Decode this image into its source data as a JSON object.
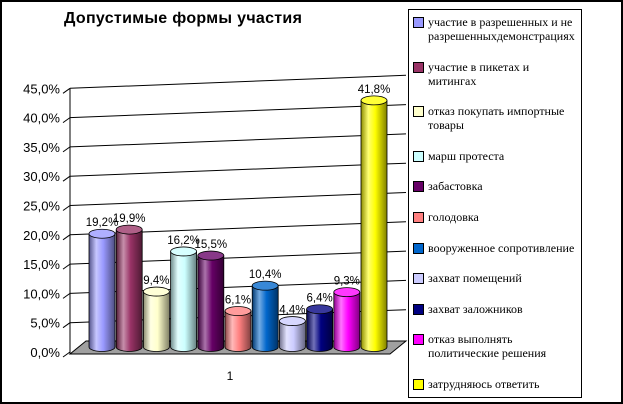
{
  "window": {
    "title": "Допустимые формы участия"
  },
  "chart_data": {
    "type": "bar",
    "style": "3d-cylinder",
    "title": "Допустимые формы участия",
    "categories": [
      "1"
    ],
    "series": [
      {
        "name": "участие в разрешенных и не разрешенныхдемонстрациях",
        "value": 19.2,
        "label": "19,2%",
        "color": "#9999FF"
      },
      {
        "name": "участие в пикетах и митингах",
        "value": 19.9,
        "label": "19,9%",
        "color": "#993366"
      },
      {
        "name": "отказ покупать импортные товары",
        "value": 9.4,
        "label": "9,4%",
        "color": "#FFFFCC"
      },
      {
        "name": "марш протеста",
        "value": 16.2,
        "label": "16,2%",
        "color": "#CCFFFF"
      },
      {
        "name": "забастовка",
        "value": 15.5,
        "label": "15,5%",
        "color": "#660066"
      },
      {
        "name": "голодовка",
        "value": 6.1,
        "label": "6,1%",
        "color": "#FF8080"
      },
      {
        "name": "вооруженное сопротивление",
        "value": 10.4,
        "label": "10,4%",
        "color": "#0066CC"
      },
      {
        "name": "захват помещений",
        "value": 4.4,
        "label": "4,4%",
        "color": "#CCCCFF"
      },
      {
        "name": "захват заложников",
        "value": 6.4,
        "label": "6,4%",
        "color": "#000080"
      },
      {
        "name": "отказ выполнять политические решения",
        "value": 9.3,
        "label": "9,3%",
        "color": "#FF00FF"
      },
      {
        "name": "затрудняюсь ответить",
        "value": 41.8,
        "label": "41,8%",
        "color": "#FFFF00"
      }
    ],
    "y_axis": {
      "min": 0,
      "max": 45,
      "step": 5,
      "tick_labels": [
        "0,0%",
        "5,0%",
        "10,0%",
        "15,0%",
        "20,0%",
        "25,0%",
        "30,0%",
        "35,0%",
        "40,0%",
        "45,0%"
      ]
    },
    "x_axis": {
      "category_label": "1"
    },
    "legend_position": "right",
    "grid": true,
    "floor_color": "#A0A0A0"
  }
}
